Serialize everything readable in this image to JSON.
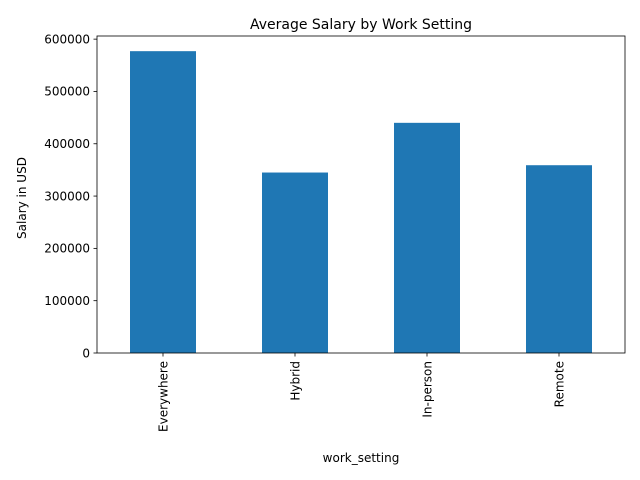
{
  "chart_data": {
    "type": "bar",
    "title": "Average Salary by Work Setting",
    "xlabel": "work_setting",
    "ylabel": "Salary in USD",
    "categories": [
      "Everywhere",
      "Hybrid",
      "In-person",
      "Remote"
    ],
    "values": [
      577000,
      345000,
      440000,
      359000
    ],
    "ylim": [
      0,
      606000
    ],
    "yticks": [
      0,
      100000,
      200000,
      300000,
      400000,
      500000,
      600000
    ],
    "ytick_labels": [
      "0",
      "100000",
      "200000",
      "300000",
      "400000",
      "500000",
      "600000"
    ],
    "bar_color": "#1f77b4",
    "grid": false,
    "legend": "none"
  }
}
